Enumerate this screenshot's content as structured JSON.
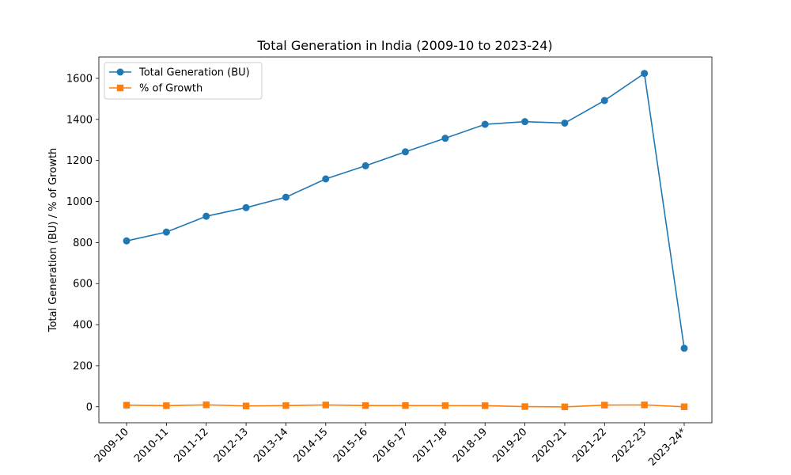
{
  "chart_data": {
    "type": "line",
    "title": "Total Generation in India (2009-10 to 2023-24)",
    "xlabel": "",
    "ylabel": "Total Generation (BU) / % of Growth",
    "categories": [
      "2009-10",
      "2010-11",
      "2011-12",
      "2012-13",
      "2013-14",
      "2014-15",
      "2015-16",
      "2016-17",
      "2017-18",
      "2018-19",
      "2019-20",
      "2020-21",
      "2021-22",
      "2022-23",
      "2023-24*"
    ],
    "ylim": [
      -78,
      1704
    ],
    "yticks": [
      0,
      200,
      400,
      600,
      800,
      1000,
      1200,
      1400,
      1600
    ],
    "grid": false,
    "legend_position": "top-left",
    "series": [
      {
        "name": "Total Generation (BU)",
        "color": "#1f77b4",
        "marker": "circle",
        "values": [
          808,
          851,
          928,
          970,
          1021,
          1110,
          1174,
          1242,
          1308,
          1376,
          1389,
          1382,
          1492,
          1624,
          285
        ]
      },
      {
        "name": "% of Growth",
        "color": "#ff7f0e",
        "marker": "square",
        "values": [
          7.5,
          5.2,
          9.1,
          4.0,
          5.6,
          8.4,
          5.7,
          5.8,
          5.4,
          5.2,
          1.0,
          -0.5,
          7.9,
          8.8,
          0
        ]
      }
    ]
  }
}
